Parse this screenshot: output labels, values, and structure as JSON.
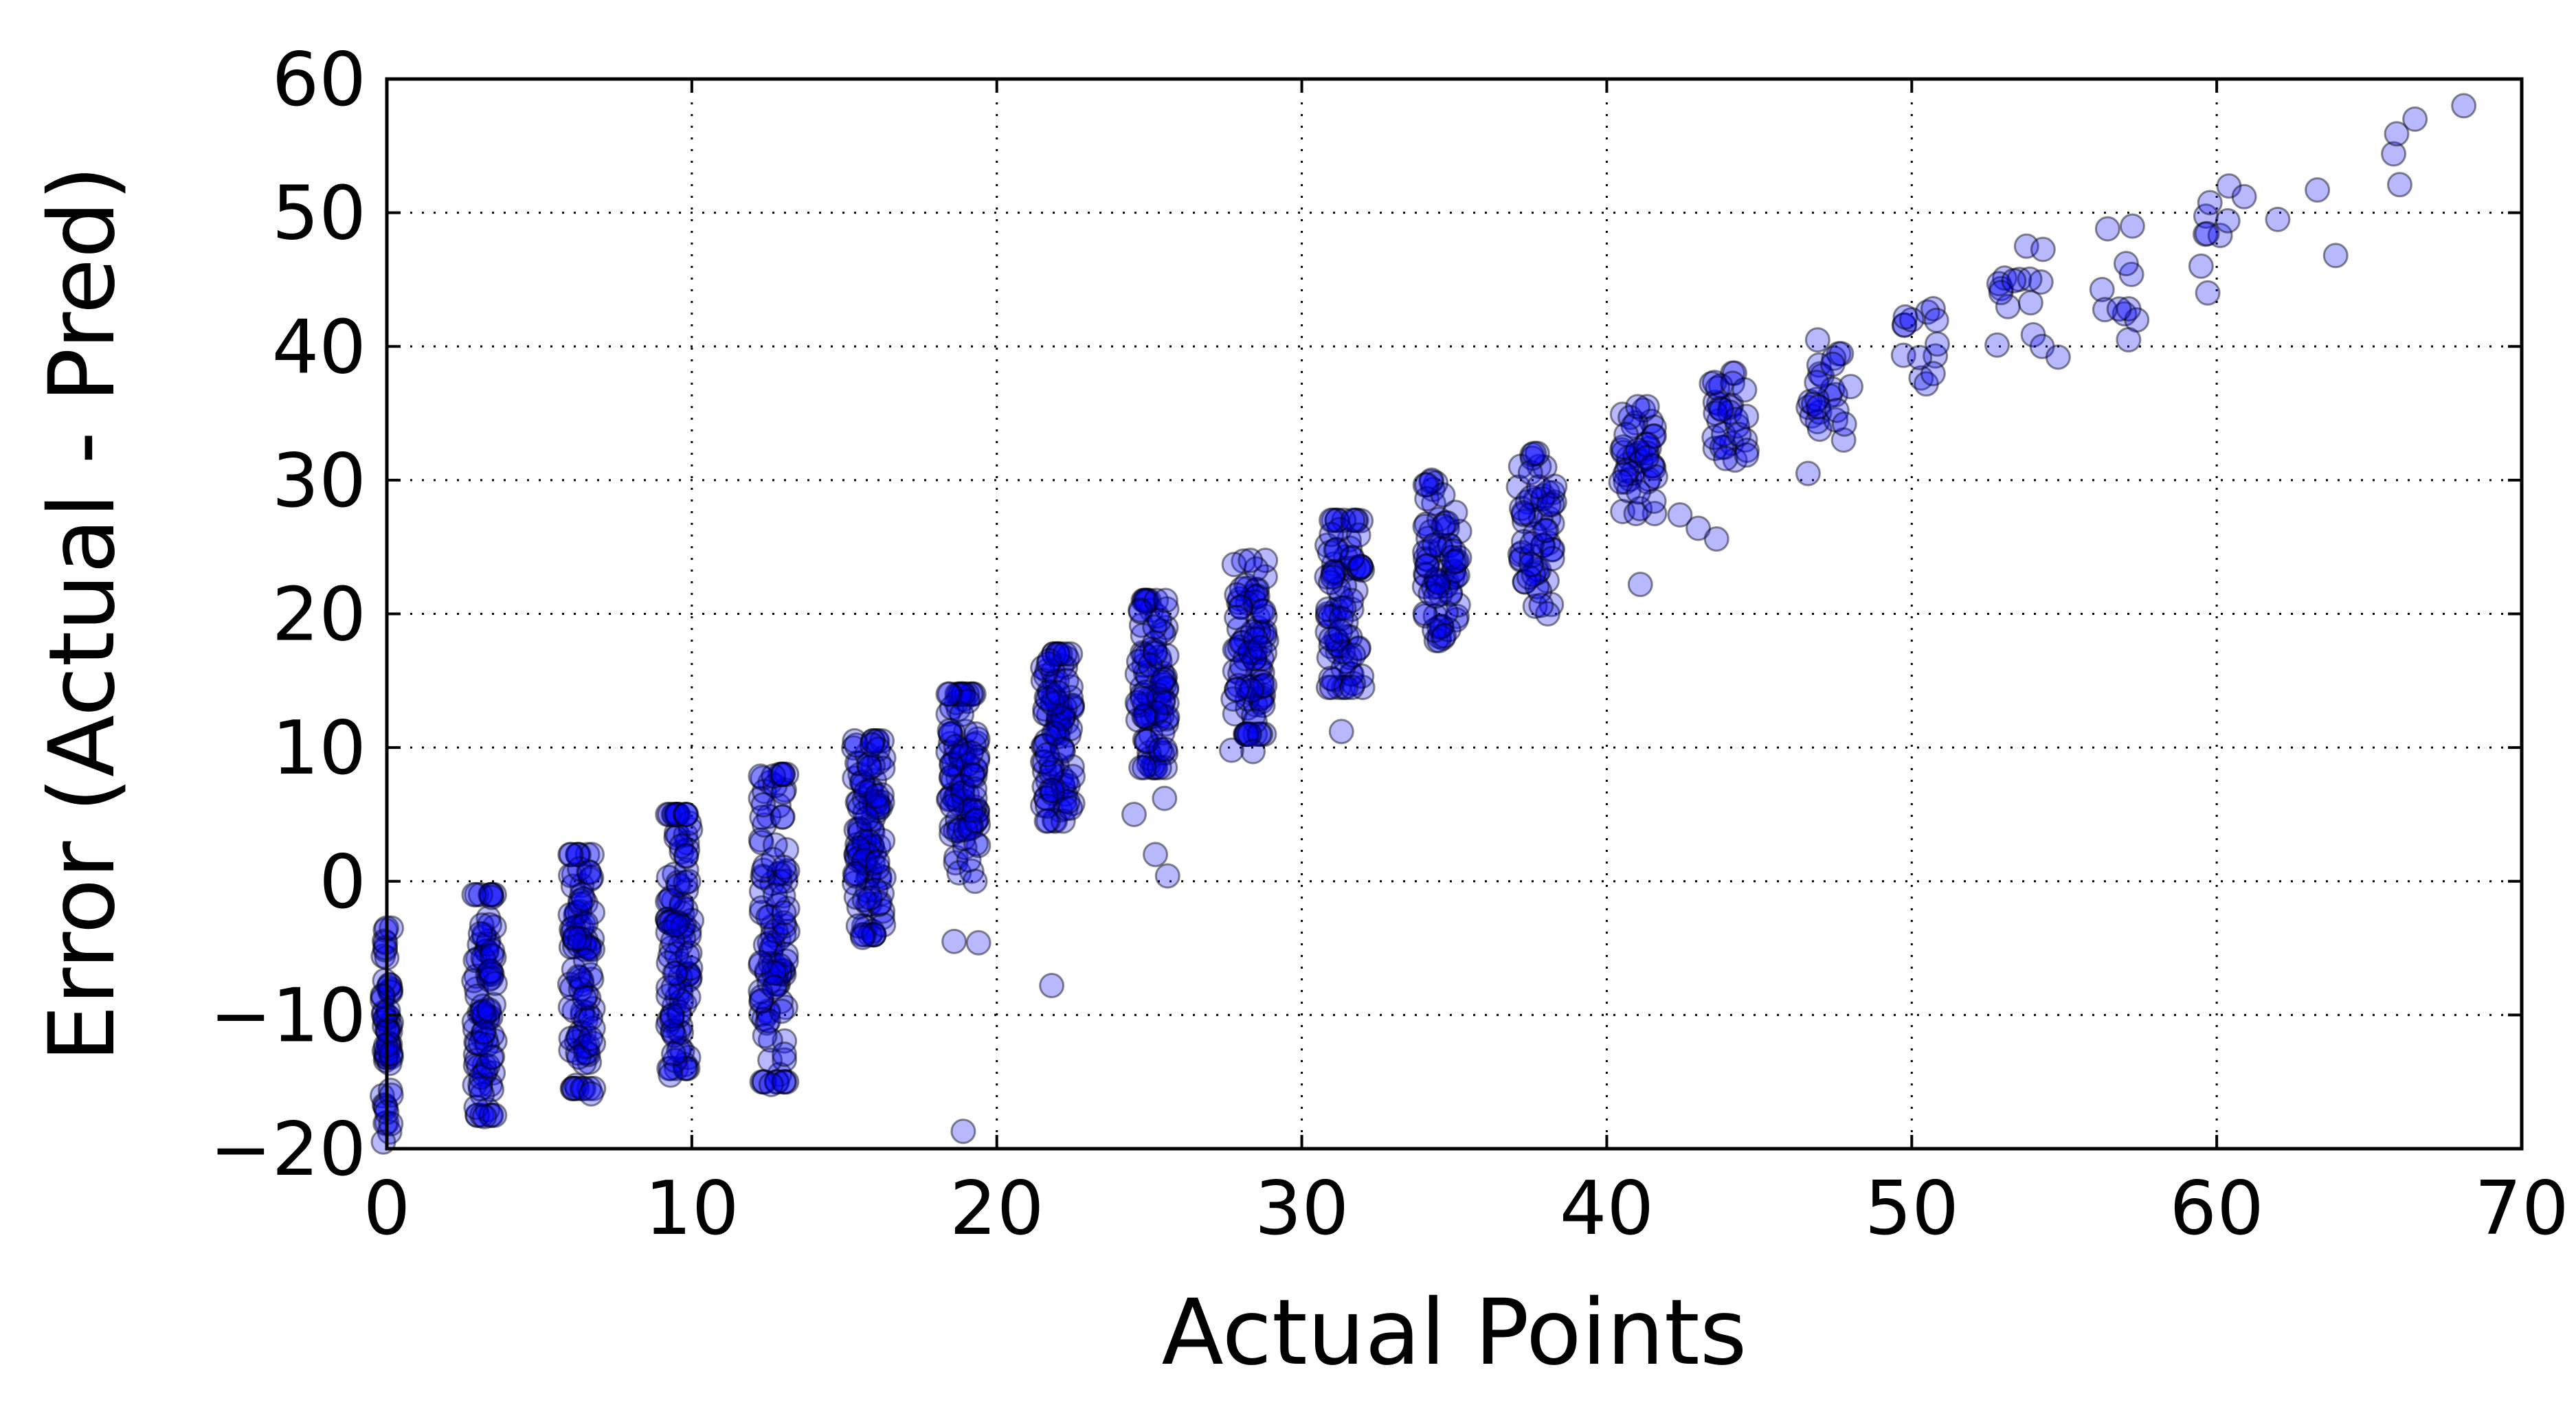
{
  "chart_data": {
    "type": "scatter",
    "title": "",
    "xlabel": "Actual Points",
    "ylabel": "Error (Actual - Pred)",
    "xlim": [
      0,
      70
    ],
    "ylim": [
      -20,
      60
    ],
    "xticks": [
      0,
      10,
      20,
      30,
      40,
      50,
      60,
      70
    ],
    "yticks": [
      -20,
      -10,
      0,
      10,
      20,
      30,
      40,
      50,
      60
    ],
    "xtick_labels": [
      "0",
      "10",
      "20",
      "30",
      "40",
      "50",
      "60",
      "70"
    ],
    "ytick_labels": [
      "−20",
      "−10",
      "0",
      "10",
      "20",
      "30",
      "40",
      "50",
      "60"
    ],
    "grid": true,
    "marker_color": "#0000ff",
    "marker_alpha": 0.28,
    "clusters": [
      {
        "x": 0.0,
        "x_jitter": 0.15,
        "y_min": -19.5,
        "y_max": -3.5,
        "n": 60
      },
      {
        "x": 3.2,
        "x_jitter": 0.35,
        "y_min": -17.5,
        "y_max": -1.0,
        "n": 90
      },
      {
        "x": 6.4,
        "x_jitter": 0.4,
        "y_min": -15.5,
        "y_max": 2.0,
        "n": 100
      },
      {
        "x": 9.6,
        "x_jitter": 0.4,
        "y_min": -14.0,
        "y_max": 5.0,
        "n": 110
      },
      {
        "x": 12.7,
        "x_jitter": 0.45,
        "y_min": -15.0,
        "y_max": 8.0,
        "n": 110
      },
      {
        "x": 15.8,
        "x_jitter": 0.5,
        "y_min": -4.0,
        "y_max": 10.5,
        "n": 110
      },
      {
        "x": 18.9,
        "x_jitter": 0.5,
        "y_min": 0.0,
        "y_max": 14.0,
        "n": 100
      },
      {
        "x": 22.0,
        "x_jitter": 0.5,
        "y_min": 4.5,
        "y_max": 17.0,
        "n": 100
      },
      {
        "x": 25.1,
        "x_jitter": 0.5,
        "y_min": 8.5,
        "y_max": 21.0,
        "n": 95
      },
      {
        "x": 28.3,
        "x_jitter": 0.55,
        "y_min": 11.0,
        "y_max": 24.0,
        "n": 90
      },
      {
        "x": 31.4,
        "x_jitter": 0.6,
        "y_min": 14.5,
        "y_max": 27.0,
        "n": 85
      },
      {
        "x": 34.6,
        "x_jitter": 0.6,
        "y_min": 18.0,
        "y_max": 30.0,
        "n": 75
      },
      {
        "x": 37.7,
        "x_jitter": 0.6,
        "y_min": 20.0,
        "y_max": 32.0,
        "n": 60
      },
      {
        "x": 41.0,
        "x_jitter": 0.6,
        "y_min": 27.5,
        "y_max": 35.5,
        "n": 45
      },
      {
        "x": 44.0,
        "x_jitter": 0.6,
        "y_min": 31.5,
        "y_max": 38.0,
        "n": 32
      },
      {
        "x": 47.2,
        "x_jitter": 0.6,
        "y_min": 33.0,
        "y_max": 40.5,
        "n": 25
      },
      {
        "x": 50.3,
        "x_jitter": 0.6,
        "y_min": 37.0,
        "y_max": 44.0,
        "n": 14
      },
      {
        "x": 53.6,
        "x_jitter": 0.8,
        "y_min": 40.0,
        "y_max": 47.5,
        "n": 14
      },
      {
        "x": 56.8,
        "x_jitter": 0.7,
        "y_min": 40.5,
        "y_max": 49.0,
        "n": 10
      },
      {
        "x": 59.9,
        "x_jitter": 0.6,
        "y_min": 44.0,
        "y_max": 52.0,
        "n": 8
      }
    ],
    "points": [
      [
        60.4,
        52.0
      ],
      [
        60.9,
        51.2
      ],
      [
        62.0,
        49.5
      ],
      [
        63.3,
        51.7
      ],
      [
        63.9,
        46.8
      ],
      [
        65.8,
        54.4
      ],
      [
        65.9,
        55.9
      ],
      [
        66.0,
        52.1
      ],
      [
        66.5,
        57.0
      ],
      [
        68.1,
        58.0
      ],
      [
        56.8,
        42.8
      ],
      [
        54.8,
        39.2
      ],
      [
        52.8,
        40.1
      ],
      [
        48.0,
        37.0
      ],
      [
        46.6,
        30.5
      ],
      [
        42.4,
        27.4
      ],
      [
        43.0,
        26.4
      ],
      [
        43.6,
        25.6
      ],
      [
        41.1,
        22.2
      ],
      [
        31.3,
        11.2
      ],
      [
        28.4,
        9.7
      ],
      [
        27.7,
        9.8
      ],
      [
        25.5,
        6.2
      ],
      [
        25.2,
        2.0
      ],
      [
        25.6,
        0.4
      ],
      [
        24.5,
        5.0
      ],
      [
        21.8,
        -7.8
      ],
      [
        18.6,
        -4.5
      ],
      [
        19.4,
        -4.6
      ],
      [
        18.9,
        -18.7
      ],
      [
        12.6,
        -15.2
      ],
      [
        9.3,
        -14.5
      ],
      [
        3.2,
        -17.6
      ],
      [
        6.7,
        -15.9
      ],
      [
        15.6,
        -4.2
      ]
    ]
  }
}
